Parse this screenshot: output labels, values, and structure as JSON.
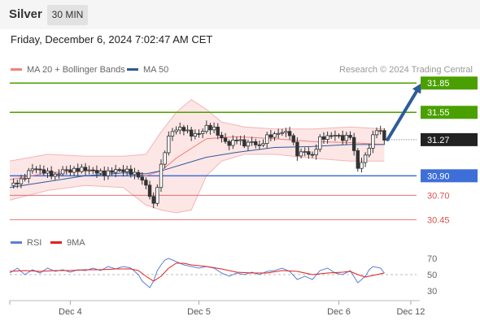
{
  "header": {
    "instrument": "Silver",
    "timeframe": "30 MIN",
    "datetime": "Friday, December 6, 2024 7:02:47 AM CET"
  },
  "legend": {
    "bollinger": {
      "label": "MA 20 + Bollinger Bands",
      "color": "#f08080"
    },
    "ma50": {
      "label": "MA 50",
      "color": "#2e5b9a"
    }
  },
  "credit": "Research © 2024 Trading Central",
  "rsi_legend": {
    "rsi": {
      "label": "RSI",
      "color": "#5b7fd6"
    },
    "ma9": {
      "label": "9MA",
      "color": "#e02020"
    }
  },
  "chart_data": [
    {
      "type": "candlestick",
      "price_range": [
        30.37,
        31.91
      ],
      "current_price": {
        "label": "31.27",
        "value": 31.27
      },
      "levels": [
        {
          "label": "31.85",
          "value": 31.85,
          "kind": "resistance",
          "color": "#4aa000"
        },
        {
          "label": "31.55",
          "value": 31.55,
          "kind": "resistance",
          "color": "#4aa000"
        },
        {
          "label": "30.90",
          "value": 30.9,
          "kind": "pivot",
          "color": "#3e6fd8"
        },
        {
          "label": "30.70",
          "value": 30.7,
          "kind": "support",
          "color": "#d9534f"
        },
        {
          "label": "30.45",
          "value": 30.45,
          "kind": "support",
          "color": "#d9534f"
        }
      ],
      "close_path": [
        [
          0,
          30.8
        ],
        [
          3,
          30.85
        ],
        [
          6,
          30.98
        ],
        [
          10,
          30.93
        ],
        [
          12,
          30.9
        ],
        [
          14,
          30.96
        ],
        [
          16,
          30.95
        ],
        [
          19,
          30.97
        ],
        [
          22,
          30.95
        ],
        [
          25,
          30.92
        ],
        [
          28,
          30.96
        ],
        [
          31,
          30.95
        ],
        [
          34,
          30.9
        ],
        [
          36,
          30.8
        ],
        [
          37,
          30.7
        ],
        [
          38,
          30.6
        ],
        [
          39,
          30.8
        ],
        [
          40,
          31.0
        ],
        [
          41,
          31.15
        ],
        [
          42,
          31.3
        ],
        [
          43,
          31.35
        ],
        [
          44,
          31.38
        ],
        [
          46,
          31.38
        ],
        [
          48,
          31.32
        ],
        [
          50,
          31.33
        ],
        [
          52,
          31.4
        ],
        [
          54,
          31.38
        ],
        [
          56,
          31.28
        ],
        [
          58,
          31.22
        ],
        [
          60,
          31.28
        ],
        [
          62,
          31.22
        ],
        [
          64,
          31.25
        ],
        [
          66,
          31.2
        ],
        [
          68,
          31.3
        ],
        [
          70,
          31.32
        ],
        [
          72,
          31.35
        ],
        [
          74,
          31.33
        ],
        [
          76,
          31.12
        ],
        [
          78,
          31.15
        ],
        [
          80,
          31.1
        ],
        [
          82,
          31.28
        ],
        [
          84,
          31.3
        ],
        [
          86,
          31.32
        ],
        [
          88,
          31.28
        ],
        [
          90,
          31.31
        ],
        [
          92,
          30.98
        ],
        [
          94,
          31.1
        ],
        [
          96,
          31.3
        ],
        [
          97,
          31.38
        ],
        [
          98,
          31.35
        ],
        [
          99,
          31.27
        ]
      ],
      "ma50_path": [
        [
          0,
          30.78
        ],
        [
          10,
          30.84
        ],
        [
          20,
          30.9
        ],
        [
          30,
          30.93
        ],
        [
          36,
          30.92
        ],
        [
          40,
          30.95
        ],
        [
          46,
          31.02
        ],
        [
          52,
          31.09
        ],
        [
          60,
          31.14
        ],
        [
          70,
          31.19
        ],
        [
          80,
          31.2
        ],
        [
          90,
          31.22
        ],
        [
          99,
          31.22
        ]
      ],
      "ma20_path": [
        [
          0,
          30.86
        ],
        [
          10,
          30.93
        ],
        [
          20,
          30.95
        ],
        [
          30,
          30.95
        ],
        [
          36,
          30.9
        ],
        [
          40,
          30.95
        ],
        [
          44,
          31.08
        ],
        [
          48,
          31.18
        ],
        [
          52,
          31.28
        ],
        [
          60,
          31.3
        ],
        [
          70,
          31.28
        ],
        [
          80,
          31.25
        ],
        [
          90,
          31.24
        ],
        [
          99,
          31.22
        ]
      ],
      "bb_upper_path": [
        [
          0,
          31.05
        ],
        [
          10,
          31.12
        ],
        [
          20,
          31.1
        ],
        [
          30,
          31.1
        ],
        [
          36,
          31.12
        ],
        [
          40,
          31.35
        ],
        [
          44,
          31.55
        ],
        [
          48,
          31.68
        ],
        [
          52,
          31.58
        ],
        [
          56,
          31.45
        ],
        [
          62,
          31.4
        ],
        [
          70,
          31.38
        ],
        [
          80,
          31.38
        ],
        [
          90,
          31.4
        ],
        [
          99,
          31.38
        ]
      ],
      "bb_lower_path": [
        [
          0,
          30.65
        ],
        [
          10,
          30.75
        ],
        [
          20,
          30.8
        ],
        [
          30,
          30.78
        ],
        [
          36,
          30.6
        ],
        [
          40,
          30.55
        ],
        [
          44,
          30.52
        ],
        [
          48,
          30.55
        ],
        [
          52,
          30.9
        ],
        [
          56,
          31.05
        ],
        [
          62,
          31.12
        ],
        [
          70,
          31.12
        ],
        [
          80,
          31.08
        ],
        [
          90,
          31.05
        ],
        [
          99,
          31.05
        ]
      ],
      "x_labels": [
        {
          "label": "Dec 4",
          "pos": 16
        },
        {
          "label": "Dec 5",
          "pos": 50
        },
        {
          "label": "Dec 6",
          "pos": 87
        },
        {
          "label": "Dec 12",
          "pos": 106
        }
      ],
      "projection": {
        "from": [
          99,
          31.27
        ],
        "to": [
          108,
          31.85
        ]
      }
    },
    {
      "type": "line",
      "range": [
        20,
        80
      ],
      "ticks": [
        {
          "label": "70",
          "value": 70
        },
        {
          "label": "50",
          "value": 50
        },
        {
          "label": "30",
          "value": 30
        }
      ],
      "rsi_path": [
        [
          0,
          52
        ],
        [
          2,
          58
        ],
        [
          4,
          50
        ],
        [
          6,
          56
        ],
        [
          8,
          52
        ],
        [
          10,
          58
        ],
        [
          12,
          54
        ],
        [
          14,
          56
        ],
        [
          16,
          53
        ],
        [
          18,
          56
        ],
        [
          20,
          55
        ],
        [
          22,
          58
        ],
        [
          24,
          55
        ],
        [
          26,
          60
        ],
        [
          28,
          57
        ],
        [
          30,
          60
        ],
        [
          32,
          58
        ],
        [
          34,
          50
        ],
        [
          35,
          42
        ],
        [
          36,
          38
        ],
        [
          37,
          34
        ],
        [
          38,
          42
        ],
        [
          39,
          55
        ],
        [
          40,
          62
        ],
        [
          41,
          68
        ],
        [
          42,
          70
        ],
        [
          43,
          68
        ],
        [
          44,
          66
        ],
        [
          46,
          62
        ],
        [
          48,
          60
        ],
        [
          50,
          58
        ],
        [
          52,
          60
        ],
        [
          54,
          58
        ],
        [
          56,
          52
        ],
        [
          58,
          48
        ],
        [
          60,
          52
        ],
        [
          62,
          50
        ],
        [
          64,
          53
        ],
        [
          66,
          50
        ],
        [
          68,
          54
        ],
        [
          70,
          55
        ],
        [
          72,
          58
        ],
        [
          74,
          54
        ],
        [
          76,
          44
        ],
        [
          78,
          48
        ],
        [
          80,
          44
        ],
        [
          82,
          55
        ],
        [
          84,
          58
        ],
        [
          86,
          52
        ],
        [
          88,
          50
        ],
        [
          90,
          55
        ],
        [
          92,
          40
        ],
        [
          94,
          48
        ],
        [
          95,
          56
        ],
        [
          96,
          60
        ],
        [
          98,
          58
        ],
        [
          99,
          52
        ]
      ],
      "ma9_path": [
        [
          0,
          54
        ],
        [
          4,
          55
        ],
        [
          8,
          54
        ],
        [
          12,
          55
        ],
        [
          16,
          55
        ],
        [
          20,
          56
        ],
        [
          24,
          56
        ],
        [
          28,
          57
        ],
        [
          32,
          57
        ],
        [
          34,
          55
        ],
        [
          36,
          48
        ],
        [
          38,
          42
        ],
        [
          40,
          48
        ],
        [
          42,
          58
        ],
        [
          44,
          64
        ],
        [
          46,
          64
        ],
        [
          48,
          62
        ],
        [
          52,
          60
        ],
        [
          56,
          57
        ],
        [
          60,
          53
        ],
        [
          64,
          52
        ],
        [
          68,
          52
        ],
        [
          72,
          55
        ],
        [
          76,
          54
        ],
        [
          80,
          50
        ],
        [
          84,
          52
        ],
        [
          88,
          53
        ],
        [
          90,
          54
        ],
        [
          92,
          50
        ],
        [
          94,
          47
        ],
        [
          96,
          49
        ],
        [
          99,
          52
        ]
      ]
    }
  ]
}
